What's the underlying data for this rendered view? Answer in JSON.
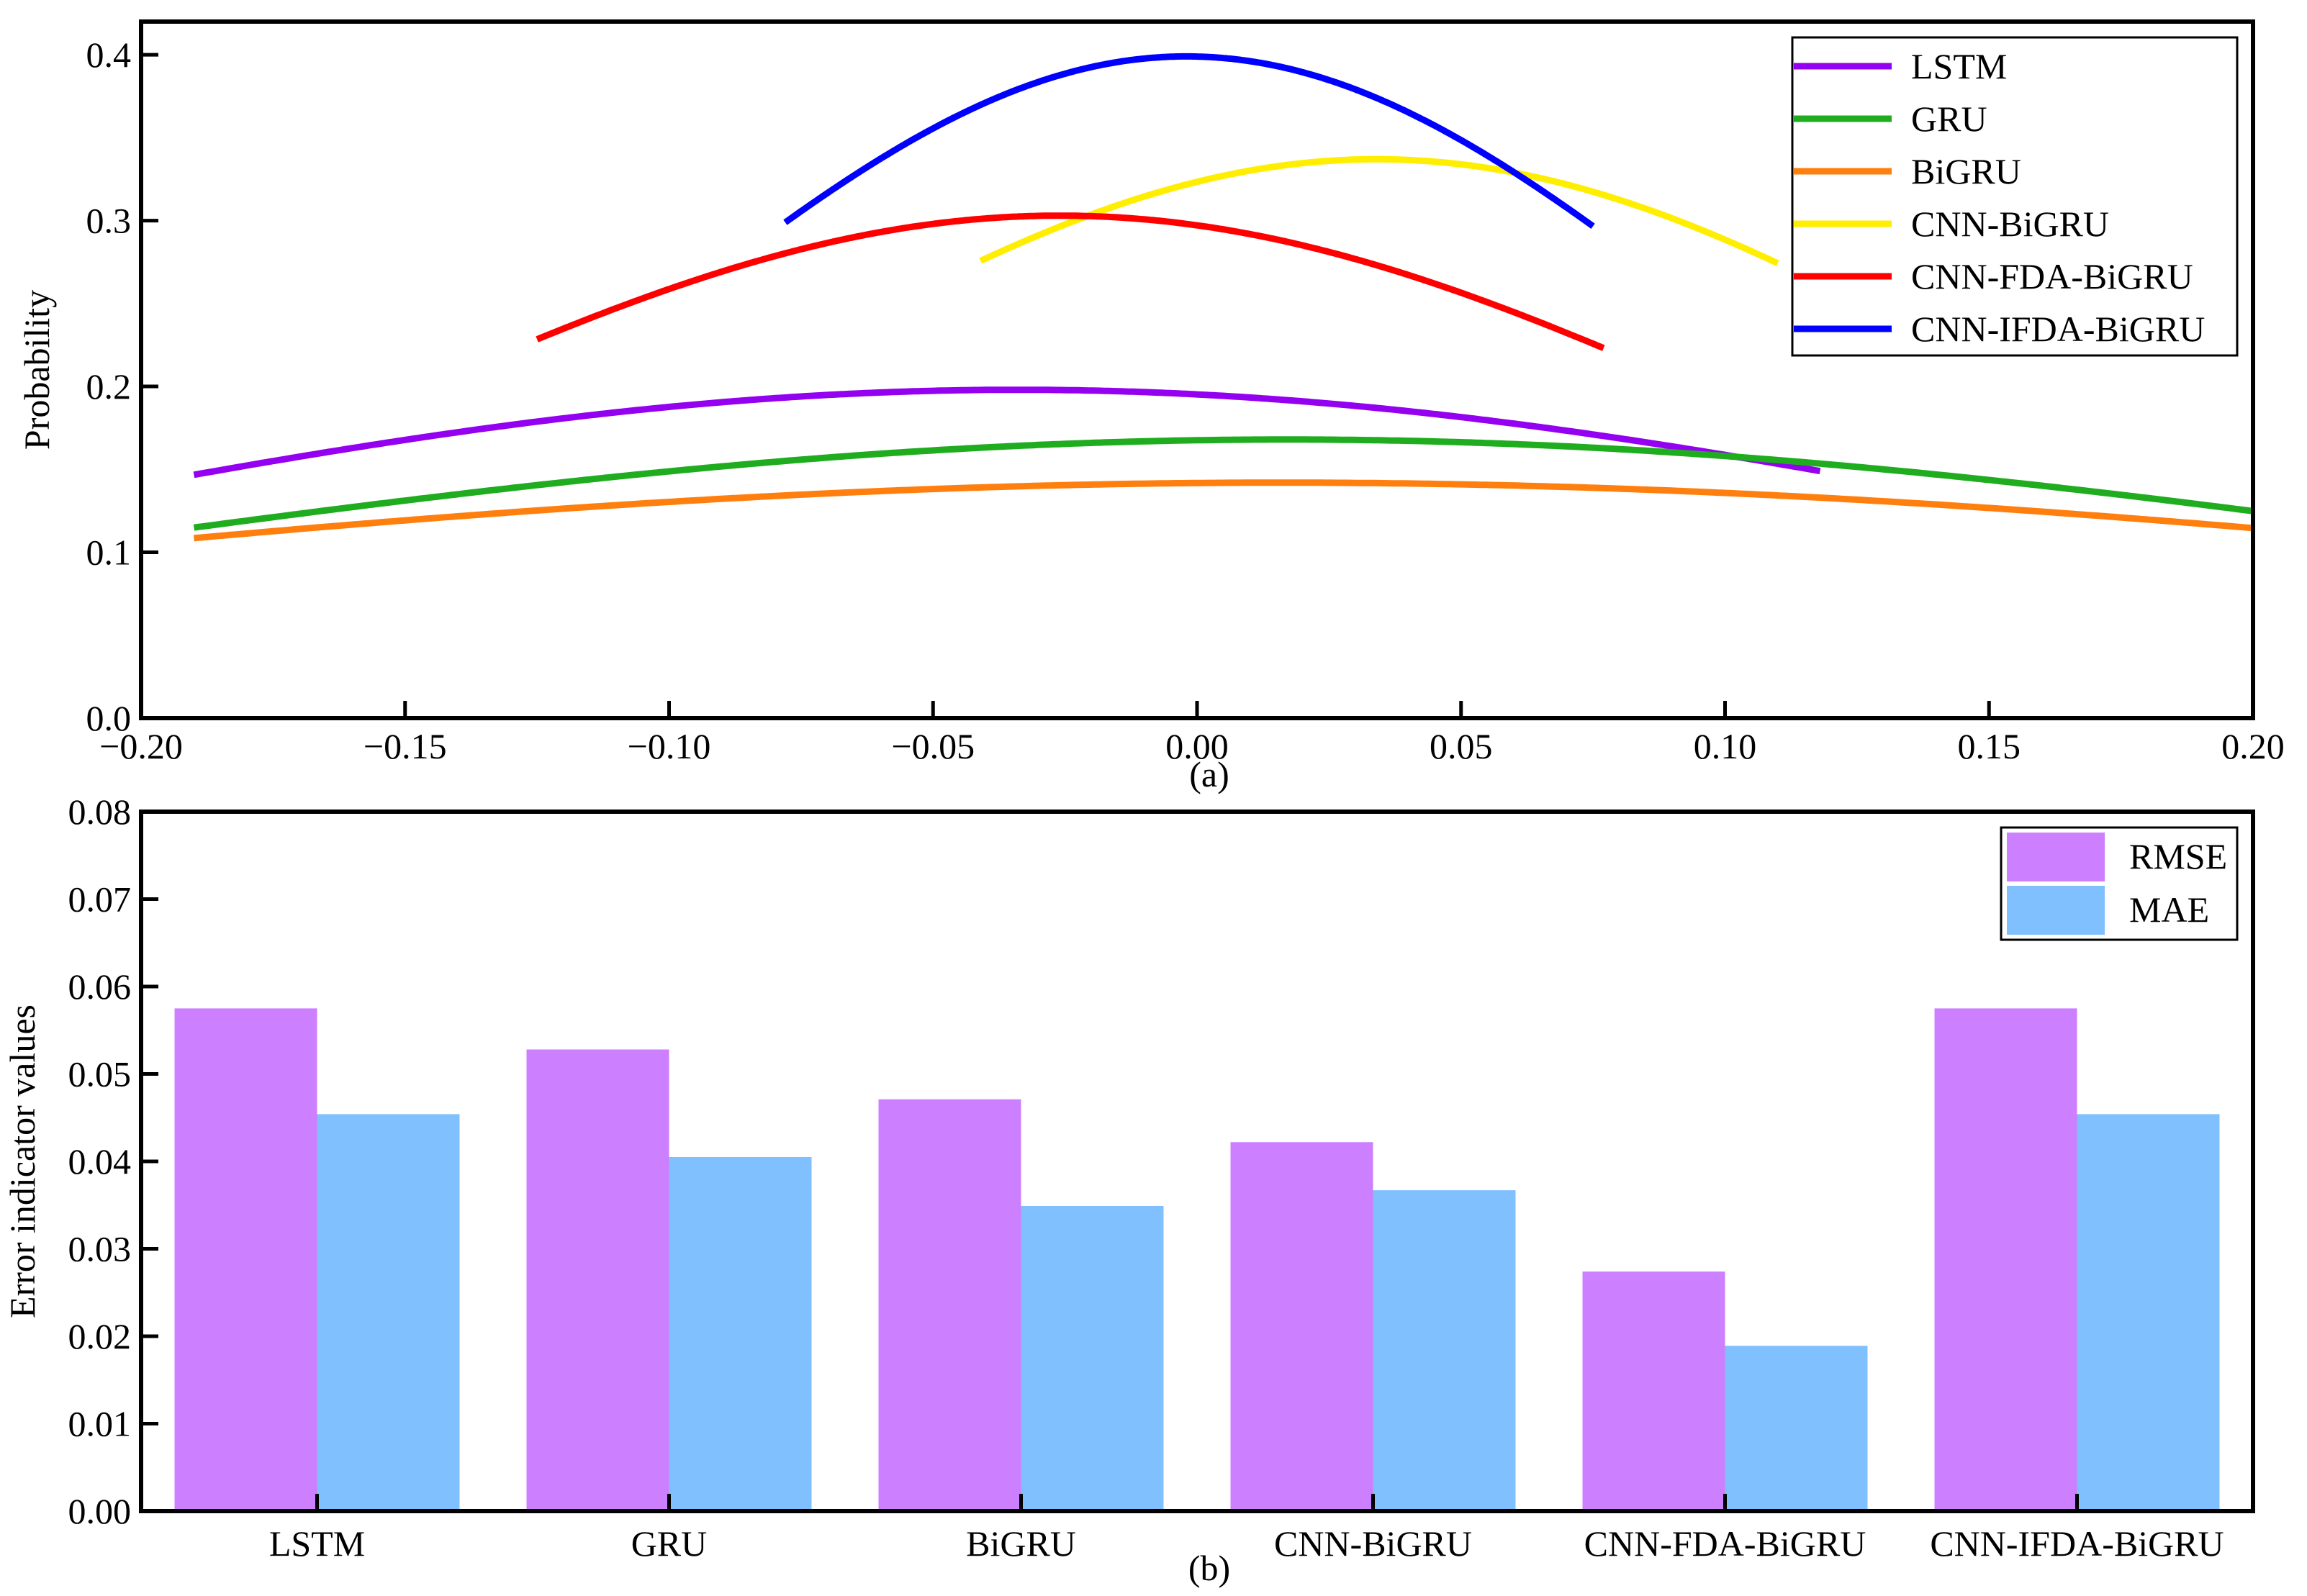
{
  "chart_data": [
    {
      "type": "line",
      "panel": "(a)",
      "xlabel": "",
      "ylabel": "Probability",
      "xlim": [
        -0.2,
        0.2
      ],
      "ylim": [
        0,
        0.42
      ],
      "x_ticks": [
        -0.2,
        -0.15,
        -0.1,
        -0.05,
        0.0,
        0.05,
        0.1,
        0.15,
        0.2
      ],
      "x_tick_labels": [
        "−0.20",
        "−0.15",
        "−0.10",
        "−0.05",
        "0.00",
        "0.05",
        "0.10",
        "0.15",
        "0.20"
      ],
      "y_ticks": [
        0.0,
        0.1,
        0.2,
        0.3,
        0.4
      ],
      "y_tick_labels": [
        "0.0",
        "0.1",
        "0.2",
        "0.3",
        "0.4"
      ],
      "legend_position": "top-right",
      "series": [
        {
          "name": "LSTM",
          "color": "#9400f0",
          "mean": -0.034,
          "peak": 0.198,
          "x_range": [
            -0.19,
            0.118
          ]
        },
        {
          "name": "GRU",
          "color": "#1fad1f",
          "mean": 0.017,
          "peak": 0.168,
          "x_range": [
            -0.19,
            0.2
          ]
        },
        {
          "name": "BiGRU",
          "color": "#ff7f0e",
          "mean": 0.016,
          "peak": 0.142,
          "x_range": [
            -0.19,
            0.2
          ]
        },
        {
          "name": "CNN-BiGRU",
          "color": "#ffee00",
          "mean": 0.034,
          "peak": 0.337,
          "x_range": [
            -0.041,
            0.11
          ]
        },
        {
          "name": "CNN-FDA-BiGRU",
          "color": "#ff0000",
          "mean": -0.026,
          "peak": 0.303,
          "x_range": [
            -0.125,
            0.077
          ]
        },
        {
          "name": "CNN-IFDA-BiGRU",
          "color": "#0000ff",
          "mean": -0.002,
          "peak": 0.399,
          "x_range": [
            -0.078,
            0.075
          ]
        }
      ]
    },
    {
      "type": "bar",
      "panel": "(b)",
      "xlabel": "",
      "ylabel": "Error indicator values",
      "ylim": [
        0,
        0.08
      ],
      "y_ticks": [
        0.0,
        0.01,
        0.02,
        0.03,
        0.04,
        0.05,
        0.06,
        0.07,
        0.08
      ],
      "y_tick_labels": [
        "0.00",
        "0.01",
        "0.02",
        "0.03",
        "0.04",
        "0.05",
        "0.06",
        "0.07",
        "0.08"
      ],
      "legend_position": "top-right",
      "categories": [
        "LSTM",
        "GRU",
        "BiGRU",
        "CNN-BiGRU",
        "CNN-FDA-BiGRU",
        "CNN-IFDA-BiGRU"
      ],
      "series": [
        {
          "name": "RMSE",
          "color": "#cc80ff",
          "values": [
            0.0575,
            0.0528,
            0.0471,
            0.0422,
            0.0274,
            0.0575
          ]
        },
        {
          "name": "MAE",
          "color": "#80c0ff",
          "values": [
            0.0454,
            0.0405,
            0.0349,
            0.0367,
            0.0189,
            0.0454
          ]
        }
      ]
    }
  ]
}
